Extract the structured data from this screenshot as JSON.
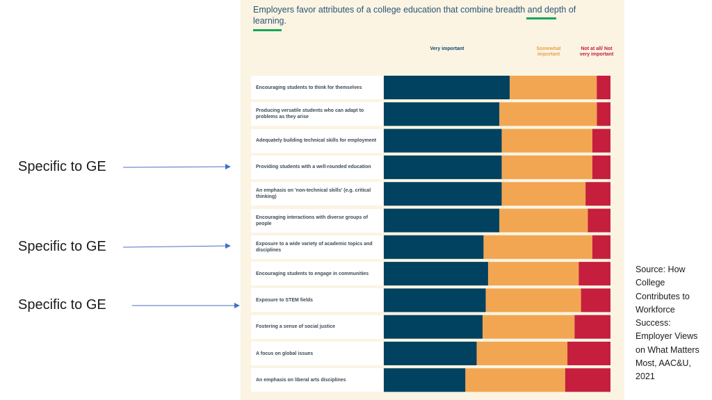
{
  "slide": {
    "annotations": [
      {
        "label": "Specific to GE",
        "row_index": 3
      },
      {
        "label": "Specific to GE",
        "row_index": 6
      },
      {
        "label": "Specific to GE",
        "row_index": 8
      }
    ],
    "source_text": "Source: How College Contributes to Workforce Success: Employer Views on What Matters Most, AAC&U, 2021"
  },
  "chart_data": {
    "type": "bar",
    "orientation": "horizontal",
    "stacked": true,
    "normalized": true,
    "title": "Employers favor attributes of a college education that combine breadth and depth of learning.",
    "series": [
      {
        "name": "Very important",
        "color": "#00425f",
        "values": [
          55,
          51,
          52,
          52,
          52,
          51,
          44,
          46,
          45,
          44,
          41,
          36
        ]
      },
      {
        "name": "Somewhat important",
        "color": "#f2a652",
        "values": [
          38,
          43,
          40,
          40,
          37,
          39,
          48,
          40,
          42,
          41,
          40,
          44
        ]
      },
      {
        "name": "Not at all/ Not very important",
        "color": "#c51f3d",
        "values": [
          6,
          6,
          8,
          8,
          11,
          10,
          8,
          14,
          13,
          16,
          19,
          20
        ]
      }
    ],
    "series_headers": [
      "Very important",
      "Somewhat important",
      "Not at all/ Not very important"
    ],
    "categories": [
      "Encouraging students to think for themselves",
      "Producing versatile students who can adapt to problems as they arise",
      "Adequately building technical skills for employment",
      "Providing students with a well-rounded education",
      "An emphasis on 'non-technical skills' (e.g. critical thinking)",
      "Encouraging interactions with diverse groups of people",
      "Exposure to a wide variety of academic topics and disciplines",
      "Encouraging students to engage in communities",
      "Exposure to STEM fields",
      "Fostering a sense of social justice",
      "A focus on global issues",
      "An emphasis on liberal arts disciplines"
    ],
    "value_suffix": "%",
    "legend": "top"
  }
}
